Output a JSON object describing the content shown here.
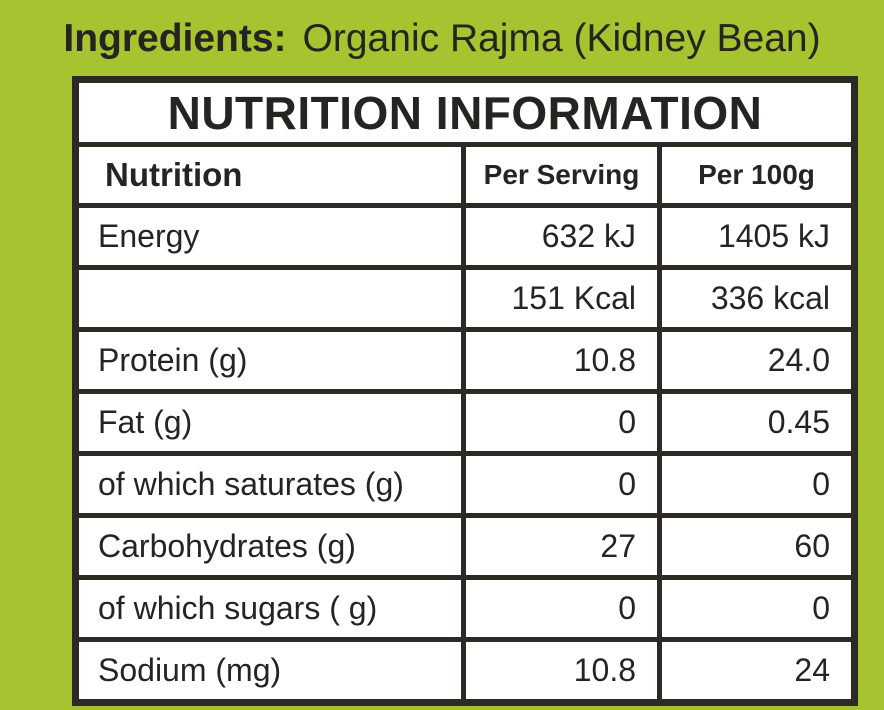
{
  "page": {
    "background_color": "#a6c42f",
    "text_color": "#262420",
    "border_color": "#2d2a26",
    "cell_background": "#ffffff"
  },
  "ingredients": {
    "label": "Ingredients:",
    "value": "Organic Rajma (Kidney Bean)"
  },
  "table": {
    "title": "NUTRITION INFORMATION",
    "headers": {
      "nutrition": "Nutrition",
      "per_serving": "Per Serving",
      "per_100g": "Per 100g"
    },
    "rows": [
      {
        "name": "Energy",
        "per_serving": "632 kJ",
        "per_100g": "1405 kJ"
      },
      {
        "name": "",
        "per_serving": "151 Kcal",
        "per_100g": "336 kcal"
      },
      {
        "name": "Protein (g)",
        "per_serving": "10.8",
        "per_100g": "24.0"
      },
      {
        "name": "Fat (g)",
        "per_serving": "0",
        "per_100g": "0.45"
      },
      {
        "name": "of which saturates (g)",
        "per_serving": "0",
        "per_100g": "0"
      },
      {
        "name": "Carbohydrates (g)",
        "per_serving": "27",
        "per_100g": "60"
      },
      {
        "name": "of which sugars ( g)",
        "per_serving": "0",
        "per_100g": "0"
      },
      {
        "name": "Sodium (mg)",
        "per_serving": "10.8",
        "per_100g": "24"
      }
    ]
  }
}
